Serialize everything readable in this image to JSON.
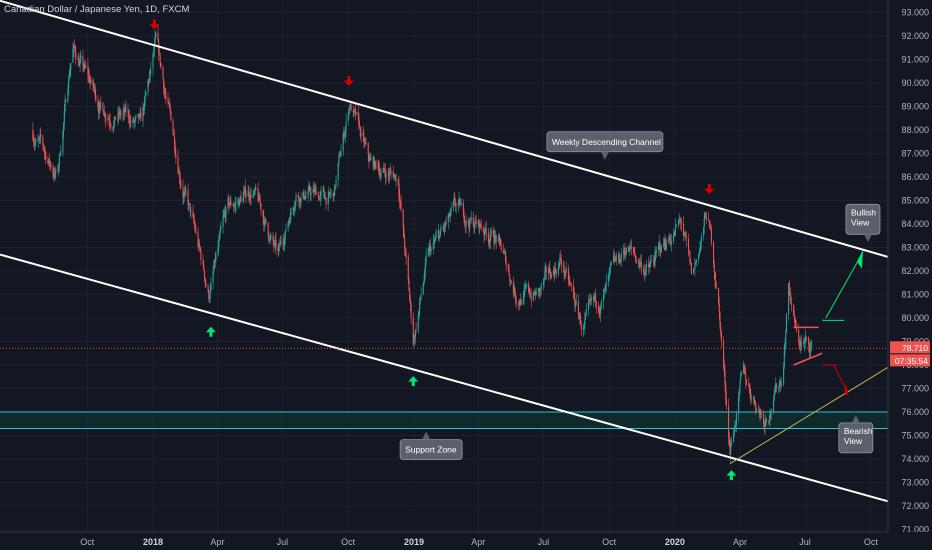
{
  "header": {
    "symbol_title": "Canadian Dollar / Japanese Yen, 1D, FXCM"
  },
  "colors": {
    "background": "#131722",
    "bull_candle": "#26a69a",
    "bear_candle": "#ef5350",
    "channel_line": "#ffffff",
    "support_line": "#26c6da",
    "trend_line": "#c8b45a",
    "arrow_up": "#00e676",
    "arrow_down": "#d50000",
    "price_line": "#ef5350",
    "callout_fill": "#5d606b"
  },
  "chart_data": {
    "type": "candlestick",
    "title": "Canadian Dollar / Japanese Yen, 1D, FXCM",
    "ylim": [
      71.0,
      93.0
    ],
    "y_ticks": [
      "93.000",
      "92.000",
      "91.000",
      "90.000",
      "89.000",
      "88.000",
      "87.000",
      "86.000",
      "85.000",
      "84.000",
      "83.000",
      "82.000",
      "81.000",
      "80.000",
      "79.000",
      "78.000",
      "77.000",
      "76.000",
      "75.000",
      "74.000",
      "73.000",
      "72.000",
      "71.000"
    ],
    "x_ticks": [
      {
        "label": "Oct",
        "date": "2017-10-01",
        "bold": false
      },
      {
        "label": "2018",
        "date": "2018-01-01",
        "bold": true
      },
      {
        "label": "Apr",
        "date": "2018-04-01",
        "bold": false
      },
      {
        "label": "Jul",
        "date": "2018-07-01",
        "bold": false
      },
      {
        "label": "Oct",
        "date": "2018-10-01",
        "bold": false
      },
      {
        "label": "2019",
        "date": "2019-01-01",
        "bold": true
      },
      {
        "label": "Apr",
        "date": "2019-04-01",
        "bold": false
      },
      {
        "label": "Jul",
        "date": "2019-07-01",
        "bold": false
      },
      {
        "label": "Oct",
        "date": "2019-10-01",
        "bold": false
      },
      {
        "label": "2020",
        "date": "2020-01-01",
        "bold": true
      },
      {
        "label": "Apr",
        "date": "2020-04-01",
        "bold": false
      },
      {
        "label": "Jul",
        "date": "2020-07-01",
        "bold": false
      },
      {
        "label": "Oct",
        "date": "2020-10-01",
        "bold": false
      }
    ],
    "key_points": [
      {
        "date": "2017-07-15",
        "close": 88.0
      },
      {
        "date": "2017-08-20",
        "close": 86.0
      },
      {
        "date": "2017-09-10",
        "close": 91.6
      },
      {
        "date": "2017-10-20",
        "close": 89.0
      },
      {
        "date": "2017-11-25",
        "close": 88.5
      },
      {
        "date": "2017-12-15",
        "close": 88.0
      },
      {
        "date": "2018-01-05",
        "close": 91.5
      },
      {
        "date": "2018-02-10",
        "close": 86.0
      },
      {
        "date": "2018-03-20",
        "close": 81.0
      },
      {
        "date": "2018-04-15",
        "close": 84.5
      },
      {
        "date": "2018-05-20",
        "close": 85.5
      },
      {
        "date": "2018-06-25",
        "close": 82.5
      },
      {
        "date": "2018-07-20",
        "close": 85.5
      },
      {
        "date": "2018-09-10",
        "close": 85.0
      },
      {
        "date": "2018-10-03",
        "close": 89.2
      },
      {
        "date": "2018-10-30",
        "close": 86.5
      },
      {
        "date": "2018-12-10",
        "close": 86.0
      },
      {
        "date": "2018-12-31",
        "close": 79.0
      },
      {
        "date": "2019-01-20",
        "close": 82.5
      },
      {
        "date": "2019-03-01",
        "close": 84.5
      },
      {
        "date": "2019-04-25",
        "close": 83.5
      },
      {
        "date": "2019-05-25",
        "close": 81.0
      },
      {
        "date": "2019-06-25",
        "close": 81.0
      },
      {
        "date": "2019-07-25",
        "close": 82.5
      },
      {
        "date": "2019-08-25",
        "close": 79.5
      },
      {
        "date": "2019-09-25",
        "close": 81.0
      },
      {
        "date": "2019-10-25",
        "close": 83.0
      },
      {
        "date": "2019-11-25",
        "close": 82.0
      },
      {
        "date": "2019-12-25",
        "close": 83.5
      },
      {
        "date": "2020-01-10",
        "close": 84.0
      },
      {
        "date": "2020-01-25",
        "close": 81.5
      },
      {
        "date": "2020-02-15",
        "close": 84.5
      },
      {
        "date": "2020-03-01",
        "close": 81.0
      },
      {
        "date": "2020-03-18",
        "close": 74.5
      },
      {
        "date": "2020-04-05",
        "close": 77.5
      },
      {
        "date": "2020-05-05",
        "close": 75.8
      },
      {
        "date": "2020-05-30",
        "close": 77.5
      },
      {
        "date": "2020-06-08",
        "close": 81.5
      },
      {
        "date": "2020-06-20",
        "close": 79.0
      },
      {
        "date": "2020-07-10",
        "close": 78.71
      }
    ],
    "current_price": "78.710",
    "countdown": "07:35:54",
    "lines": {
      "channel_upper": [
        {
          "date": "2017-06-01",
          "price": 93.5
        },
        {
          "date": "2020-10-25",
          "price": 82.6
        }
      ],
      "channel_lower": [
        {
          "date": "2017-06-01",
          "price": 82.7
        },
        {
          "date": "2020-10-25",
          "price": 72.2
        }
      ],
      "support_zone": [
        76.0,
        75.3
      ],
      "trend_line": [
        {
          "date": "2020-03-18",
          "price": 73.8
        },
        {
          "date": "2020-10-25",
          "price": 77.9
        }
      ],
      "price_line": 78.71
    },
    "annotations": [
      {
        "text": "Weekly Descending Channel",
        "date": "2019-09-25",
        "price": 87.5
      },
      {
        "text": "Support Zone",
        "date": "2019-01-25",
        "price": 74.4
      },
      {
        "text": "Bullish View",
        "date": "2020-09-20",
        "price": 84.2
      },
      {
        "text": "Bearish View",
        "date": "2020-09-10",
        "price": 74.9
      }
    ],
    "markers": [
      {
        "kind": "down",
        "date": "2018-01-03",
        "price": 92.4
      },
      {
        "kind": "down",
        "date": "2018-10-02",
        "price": 90.0
      },
      {
        "kind": "down",
        "date": "2020-02-18",
        "price": 85.4
      },
      {
        "kind": "up",
        "date": "2018-03-23",
        "price": 79.5
      },
      {
        "kind": "up",
        "date": "2018-12-31",
        "price": 77.4
      },
      {
        "kind": "up",
        "date": "2020-03-20",
        "price": 73.4
      }
    ]
  }
}
